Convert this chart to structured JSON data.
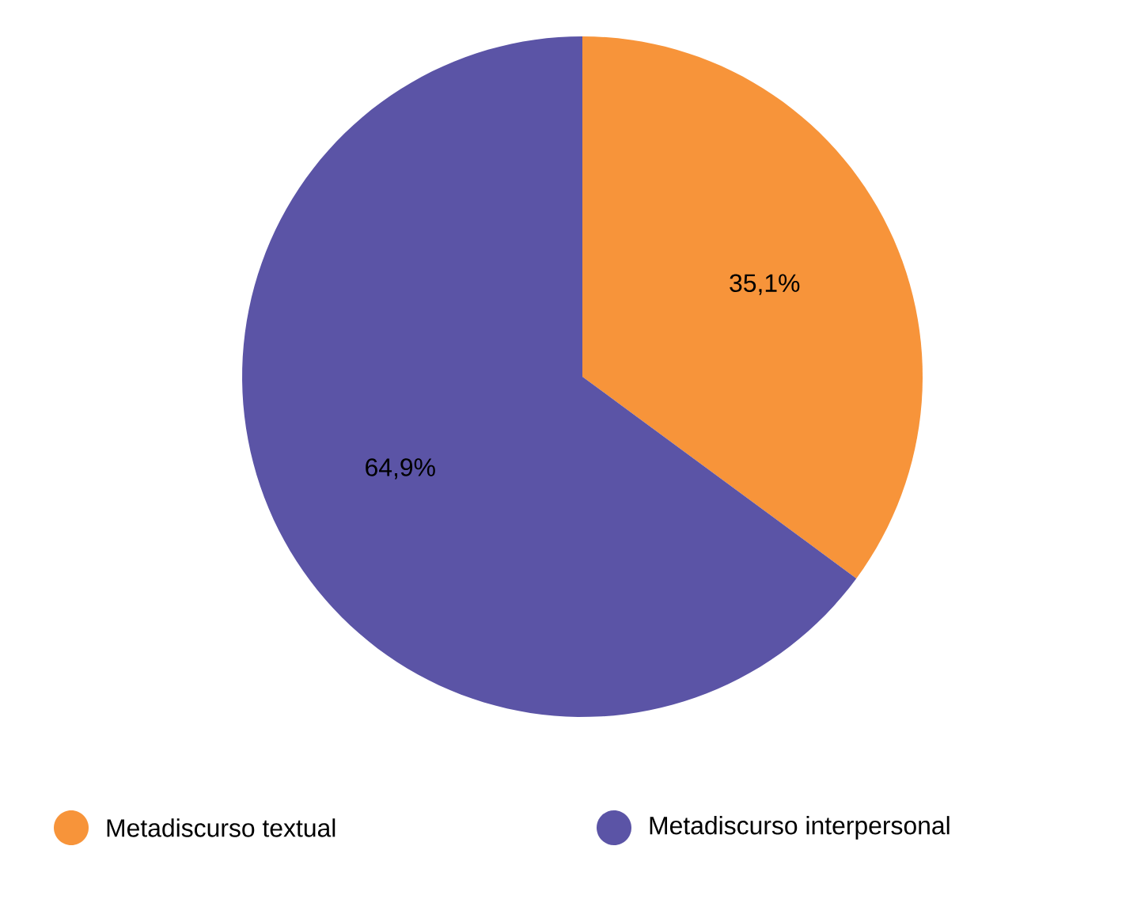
{
  "chart_data": {
    "type": "pie",
    "categories": [
      "Metadiscurso textual",
      "Metadiscurso interpersonal"
    ],
    "values": [
      35.1,
      64.9
    ],
    "colors": [
      "#f7943a",
      "#5b54a6"
    ],
    "value_labels": [
      "35,1%",
      "64,9%"
    ],
    "legend": "bottom"
  }
}
